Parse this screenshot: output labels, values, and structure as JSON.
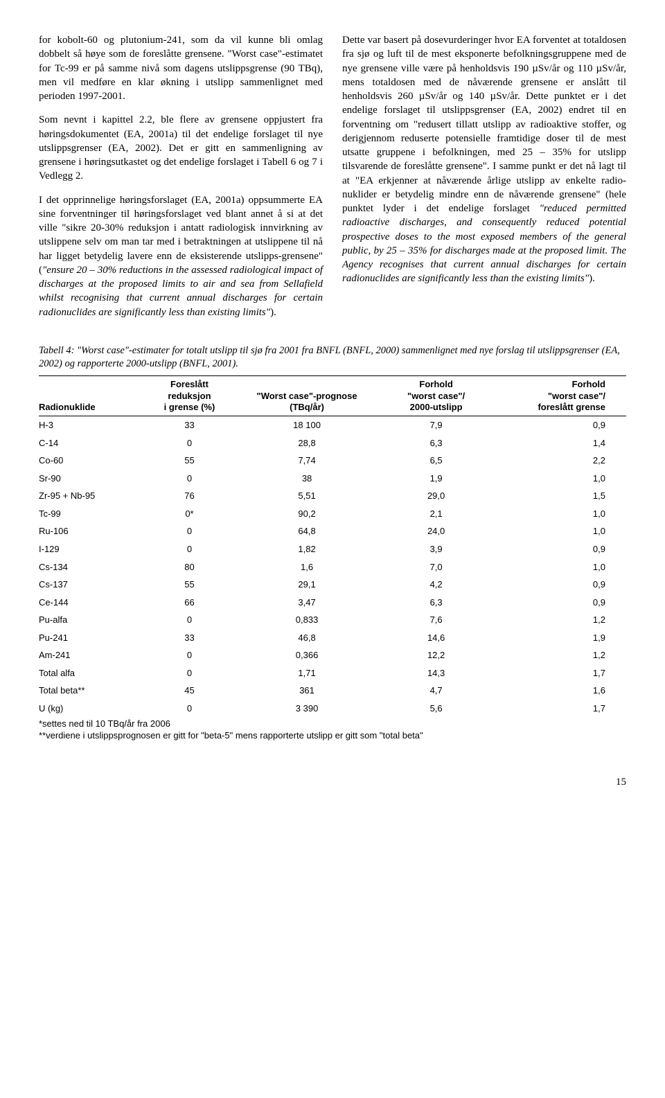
{
  "left": {
    "p1": "for kobolt-60 og plutonium-241, som da vil kunne bli omlag dobbelt så høye som de foreslåtte grensene. \"Worst case\"-estimatet for Tc-99 er på samme nivå som dagens utslippsgrense (90 TBq), men vil medføre en klar økning i utslipp sammenlignet med perioden 1997-2001.",
    "p2": "Som nevnt i kapittel 2.2, ble flere av grensene oppjustert fra høringsdokumentet (EA, 2001a) til det endelige forslaget til nye utslippsgrenser (EA, 2002). Det er gitt en sammenligning av grensene i høringsutkastet og det endelige forslaget i Tabell 6 og 7 i Vedlegg 2.",
    "p3_a": "I det opprinnelige høringsforslaget (EA, 2001a) oppsummerte EA sine forventninger til høringsforslaget ved blant annet å si at det ville \"sikre 20-30% reduksjon i antatt radiologisk innvirkning av utslippene selv om man tar med i betraktningen at utslippene til nå har ligget betydelig lavere enn de eksisterende utslipps-grensene\" (",
    "p3_i": "\"ensure 20 – 30% reductions in the assessed radiological impact of discharges at the proposed limits to air and sea from Sellafield whilst recognising that current annual discharges for certain radionuclides are significantly less than existing limits\"",
    "p3_b": ")."
  },
  "right": {
    "p1_a": "Dette var basert på dosevurderinger hvor EA forventet at totaldosen fra sjø og luft til de mest eksponerte befolkningsgruppene med de nye grensene ville være på henholdsvis 190 µSv/år og 110 µSv/år, mens totaldosen med de nåværende grensene er anslått til henholdsvis 260 µSv/år og 140 µSv/år. Dette punktet er i det endelige forslaget til utslippsgrenser (EA, 2002) endret til en forventning om \"redusert tillatt utslipp av radioaktive stoffer, og derigjennom reduserte potensielle framtidige doser til de mest utsatte gruppene i befolkningen, med 25 – 35% for utslipp tilsvarende de foreslåtte grensene\". I samme punkt er det nå lagt til at \"EA erkjenner at nåværende årlige utslipp av enkelte radio-nuklider er betydelig mindre enn de nåværende grensene\" (hele punktet lyder i det endelige forslaget ",
    "p1_i": "\"reduced permitted radioactive discharges, and consequently reduced potential prospective doses to the most exposed members of the general public, by 25 – 35% for discharges made at the proposed limit. The Agency recognises that current annual discharges for certain radionuclides are significantly less than the existing limits\"",
    "p1_b": ")."
  },
  "table": {
    "caption": "Tabell 4: \"Worst case\"-estimater for totalt utslipp til sjø fra 2001 fra BNFL (BNFL, 2000) sammenlignet med nye forslag til utslippsgrenser (EA, 2002) og rapporterte 2000-utslipp (BNFL, 2001).",
    "headers": {
      "c1": "Radionuklide",
      "c2": "Foreslått\nreduksjon\ni grense (%)",
      "c3": "\"Worst case\"-prognose\n(TBq/år)",
      "c4": "Forhold\n\"worst case\"/\n2000-utslipp",
      "c5": "Forhold\n\"worst case\"/\nforeslått grense"
    },
    "rows": [
      [
        "H-3",
        "33",
        "18 100",
        "7,9",
        "0,9"
      ],
      [
        "C-14",
        "0",
        "28,8",
        "6,3",
        "1,4"
      ],
      [
        "Co-60",
        "55",
        "7,74",
        "6,5",
        "2,2"
      ],
      [
        "Sr-90",
        "0",
        "38",
        "1,9",
        "1,0"
      ],
      [
        "Zr-95 + Nb-95",
        "76",
        "5,51",
        "29,0",
        "1,5"
      ],
      [
        "Tc-99",
        "0*",
        "90,2",
        "2,1",
        "1,0"
      ],
      [
        "Ru-106",
        "0",
        "64,8",
        "24,0",
        "1,0"
      ],
      [
        "I-129",
        "0",
        "1,82",
        "3,9",
        "0,9"
      ],
      [
        "Cs-134",
        "80",
        "1,6",
        "7,0",
        "1,0"
      ],
      [
        "Cs-137",
        "55",
        "29,1",
        "4,2",
        "0,9"
      ],
      [
        "Ce-144",
        "66",
        "3,47",
        "6,3",
        "0,9"
      ],
      [
        "Pu-alfa",
        "0",
        "0,833",
        "7,6",
        "1,2"
      ],
      [
        "Pu-241",
        "33",
        "46,8",
        "14,6",
        "1,9"
      ],
      [
        "Am-241",
        "0",
        "0,366",
        "12,2",
        "1,2"
      ],
      [
        "Total alfa",
        "0",
        "1,71",
        "14,3",
        "1,7"
      ],
      [
        "Total beta**",
        "45",
        "361",
        "4,7",
        "1,6"
      ],
      [
        "U (kg)",
        "0",
        "3 390",
        "5,6",
        "1,7"
      ]
    ],
    "footnote1": "*settes ned til 10 TBq/år fra 2006",
    "footnote2": "**verdiene i utslippsprognosen er gitt for \"beta-5\" mens rapporterte utslipp er gitt som \"total beta\""
  },
  "page": "15"
}
